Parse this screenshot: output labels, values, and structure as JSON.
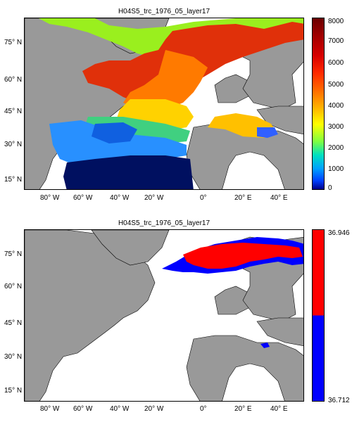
{
  "maps": [
    {
      "title": "H04S5_trc_1976_05_layer17",
      "lat_labels": [
        "75° N",
        "60° N",
        "45° N",
        "30° N",
        "15° N"
      ],
      "lon_labels": [
        "80° W",
        "60° W",
        "40° W",
        "20° W",
        "0°",
        "20° E",
        "40° E"
      ],
      "colorbar": {
        "type": "continuous",
        "labels": [
          "8000",
          "7000",
          "6000",
          "5000",
          "4000",
          "3000",
          "2000",
          "1000",
          "0"
        ]
      }
    },
    {
      "title": "H04S5_trc_1976_05_layer17",
      "lat_labels": [
        "75° N",
        "60° N",
        "45° N",
        "30° N",
        "15° N"
      ],
      "lon_labels": [
        "80° W",
        "60° W",
        "40° W",
        "20° W",
        "0°",
        "20° E",
        "40° E"
      ],
      "colorbar": {
        "type": "two-class",
        "labels": [
          "36.946",
          "36.712"
        ]
      }
    }
  ],
  "colors": {
    "land": "#999999",
    "blue": "#0000ff",
    "red": "#ff0000"
  }
}
